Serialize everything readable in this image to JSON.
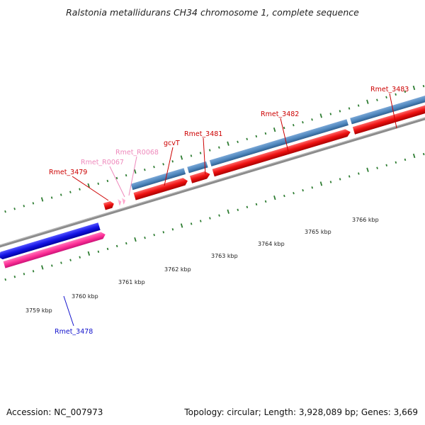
{
  "title": "Ralstonia metallidurans CH34 chromosome 1, complete sequence",
  "footer": {
    "accession": "Accession: NC_007973",
    "summary": "Topology: circular; Length: 3,928,089 bp; Genes: 3,669"
  },
  "colors": {
    "backbone": "#8c8c8c",
    "tick": "#2e7d32",
    "cds_forward": "#ee1111",
    "cds_reverse": "#1515e6",
    "rna_forward": "#ff99cc",
    "rna_reverse": "#ff3399",
    "orf_band": "#4f87bd",
    "label_dark_red": "#cc0000",
    "label_pink": "#ee88bb",
    "label_blue": "#1010cc"
  },
  "scale": {
    "ticks": [
      {
        "label": "3759 kbp"
      },
      {
        "label": "3760 kbp"
      },
      {
        "label": "3761 kbp"
      },
      {
        "label": "3762 kbp"
      },
      {
        "label": "3763 kbp"
      },
      {
        "label": "3764 kbp"
      },
      {
        "label": "3765 kbp"
      },
      {
        "label": "3766 kbp"
      }
    ]
  },
  "features": [
    {
      "name": "Rmet_3478",
      "strand": "reverse",
      "kind": "cds",
      "color": "#1515e6"
    },
    {
      "name": "",
      "strand": "reverse",
      "kind": "rna",
      "color": "#ff3399"
    },
    {
      "name": "Rmet_3479",
      "strand": "forward",
      "kind": "cds",
      "color": "#ee1111"
    },
    {
      "name": "Rmet_R0067",
      "strand": "forward",
      "kind": "rna",
      "color": "#ff99cc"
    },
    {
      "name": "Rmet_R0068",
      "strand": "forward",
      "kind": "rna",
      "color": "#ff99cc"
    },
    {
      "name": "gcvT",
      "strand": "forward",
      "kind": "cds",
      "color": "#ee1111"
    },
    {
      "name": "Rmet_3481",
      "strand": "forward",
      "kind": "cds",
      "color": "#ee1111"
    },
    {
      "name": "Rmet_3482",
      "strand": "forward",
      "kind": "cds",
      "color": "#ee1111"
    },
    {
      "name": "Rmet_3483",
      "strand": "forward",
      "kind": "cds",
      "color": "#ee1111"
    }
  ]
}
